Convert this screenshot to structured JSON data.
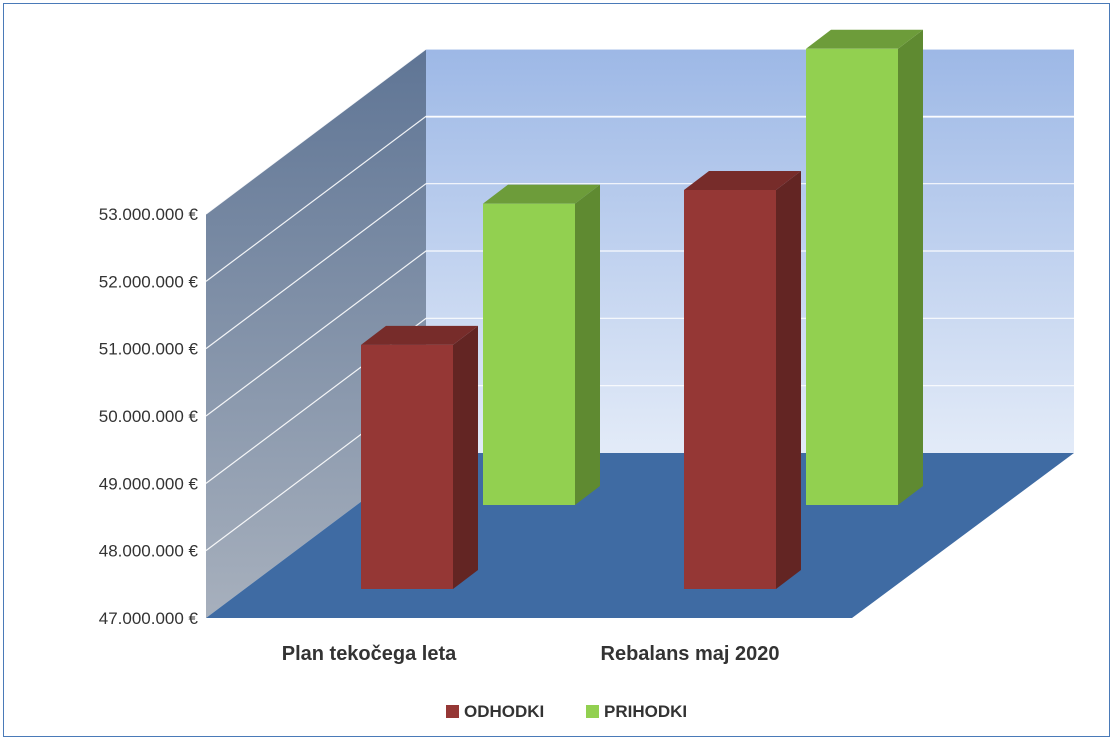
{
  "chart_data": {
    "type": "bar",
    "style": "3d-clustered-column",
    "categories": [
      "Plan tekočega leta",
      "Rebalans maj 2020"
    ],
    "series": [
      {
        "name": "ODHODKI",
        "values": [
          50700000,
          53000000
        ],
        "color": "#953735",
        "side_color": "#632523",
        "top_color": "#772c2a"
      },
      {
        "name": "PRIHODKI",
        "values": [
          51000000,
          53300000
        ],
        "color": "#92d050",
        "side_color": "#5f8a31",
        "top_color": "#6d9c3a"
      }
    ],
    "y_tick_labels": [
      "47.000.000 €",
      "48.000.000 €",
      "49.000.000 €",
      "50.000.000 €",
      "51.000.000 €",
      "52.000.000 €",
      "53.000.000 €"
    ],
    "ylim": [
      47000000,
      53000000
    ],
    "title": "",
    "xlabel": "",
    "ylabel": "",
    "grid": true,
    "legend": "bottom",
    "colors": {
      "back_wall": "#a9c0e8",
      "side_wall": "#6f85a4",
      "floor": "#3f6ba3",
      "frame_border": "#4a7ab8"
    }
  }
}
